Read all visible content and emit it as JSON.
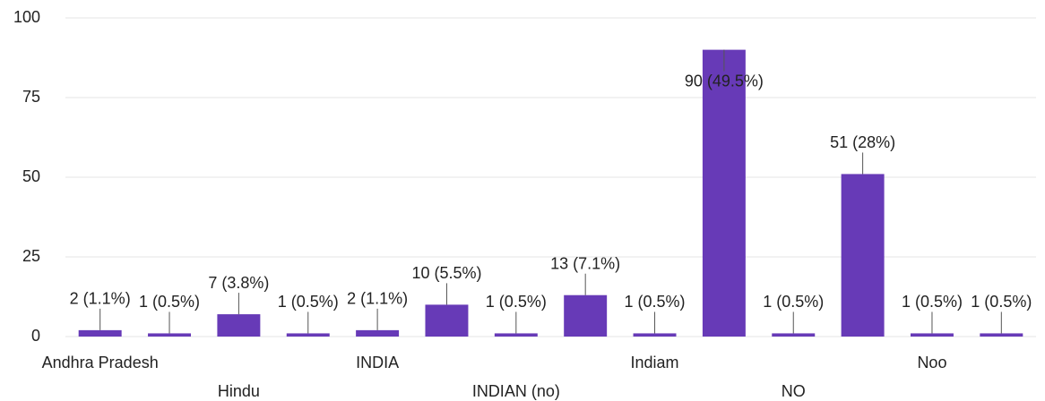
{
  "chart_data": {
    "type": "bar",
    "categories": [
      "Andhra Pradesh",
      null,
      "Hindu",
      null,
      "INDIA",
      null,
      "INDIAN (no)",
      null,
      "Indiam",
      null,
      "NO",
      null,
      "Noo",
      null
    ],
    "values": [
      2,
      1,
      7,
      1,
      2,
      10,
      1,
      13,
      1,
      90,
      1,
      51,
      1,
      1
    ],
    "value_labels": [
      "2 (1.1%)",
      "1 (0.5%)",
      "7 (3.8%)",
      "1 (0.5%)",
      "2 (1.1%)",
      "10 (5.5%)",
      "1 (0.5%)",
      "13 (7.1%)",
      "1 (0.5%)",
      "90 (49.5%)",
      "1 (0.5%)",
      "51 (28%)",
      "1 (0.5%)",
      "1 (0.5%)"
    ],
    "color": "#673ab7",
    "ylim": [
      0,
      100
    ],
    "yticks": [
      0,
      25,
      50,
      75,
      100
    ],
    "grid": true
  }
}
